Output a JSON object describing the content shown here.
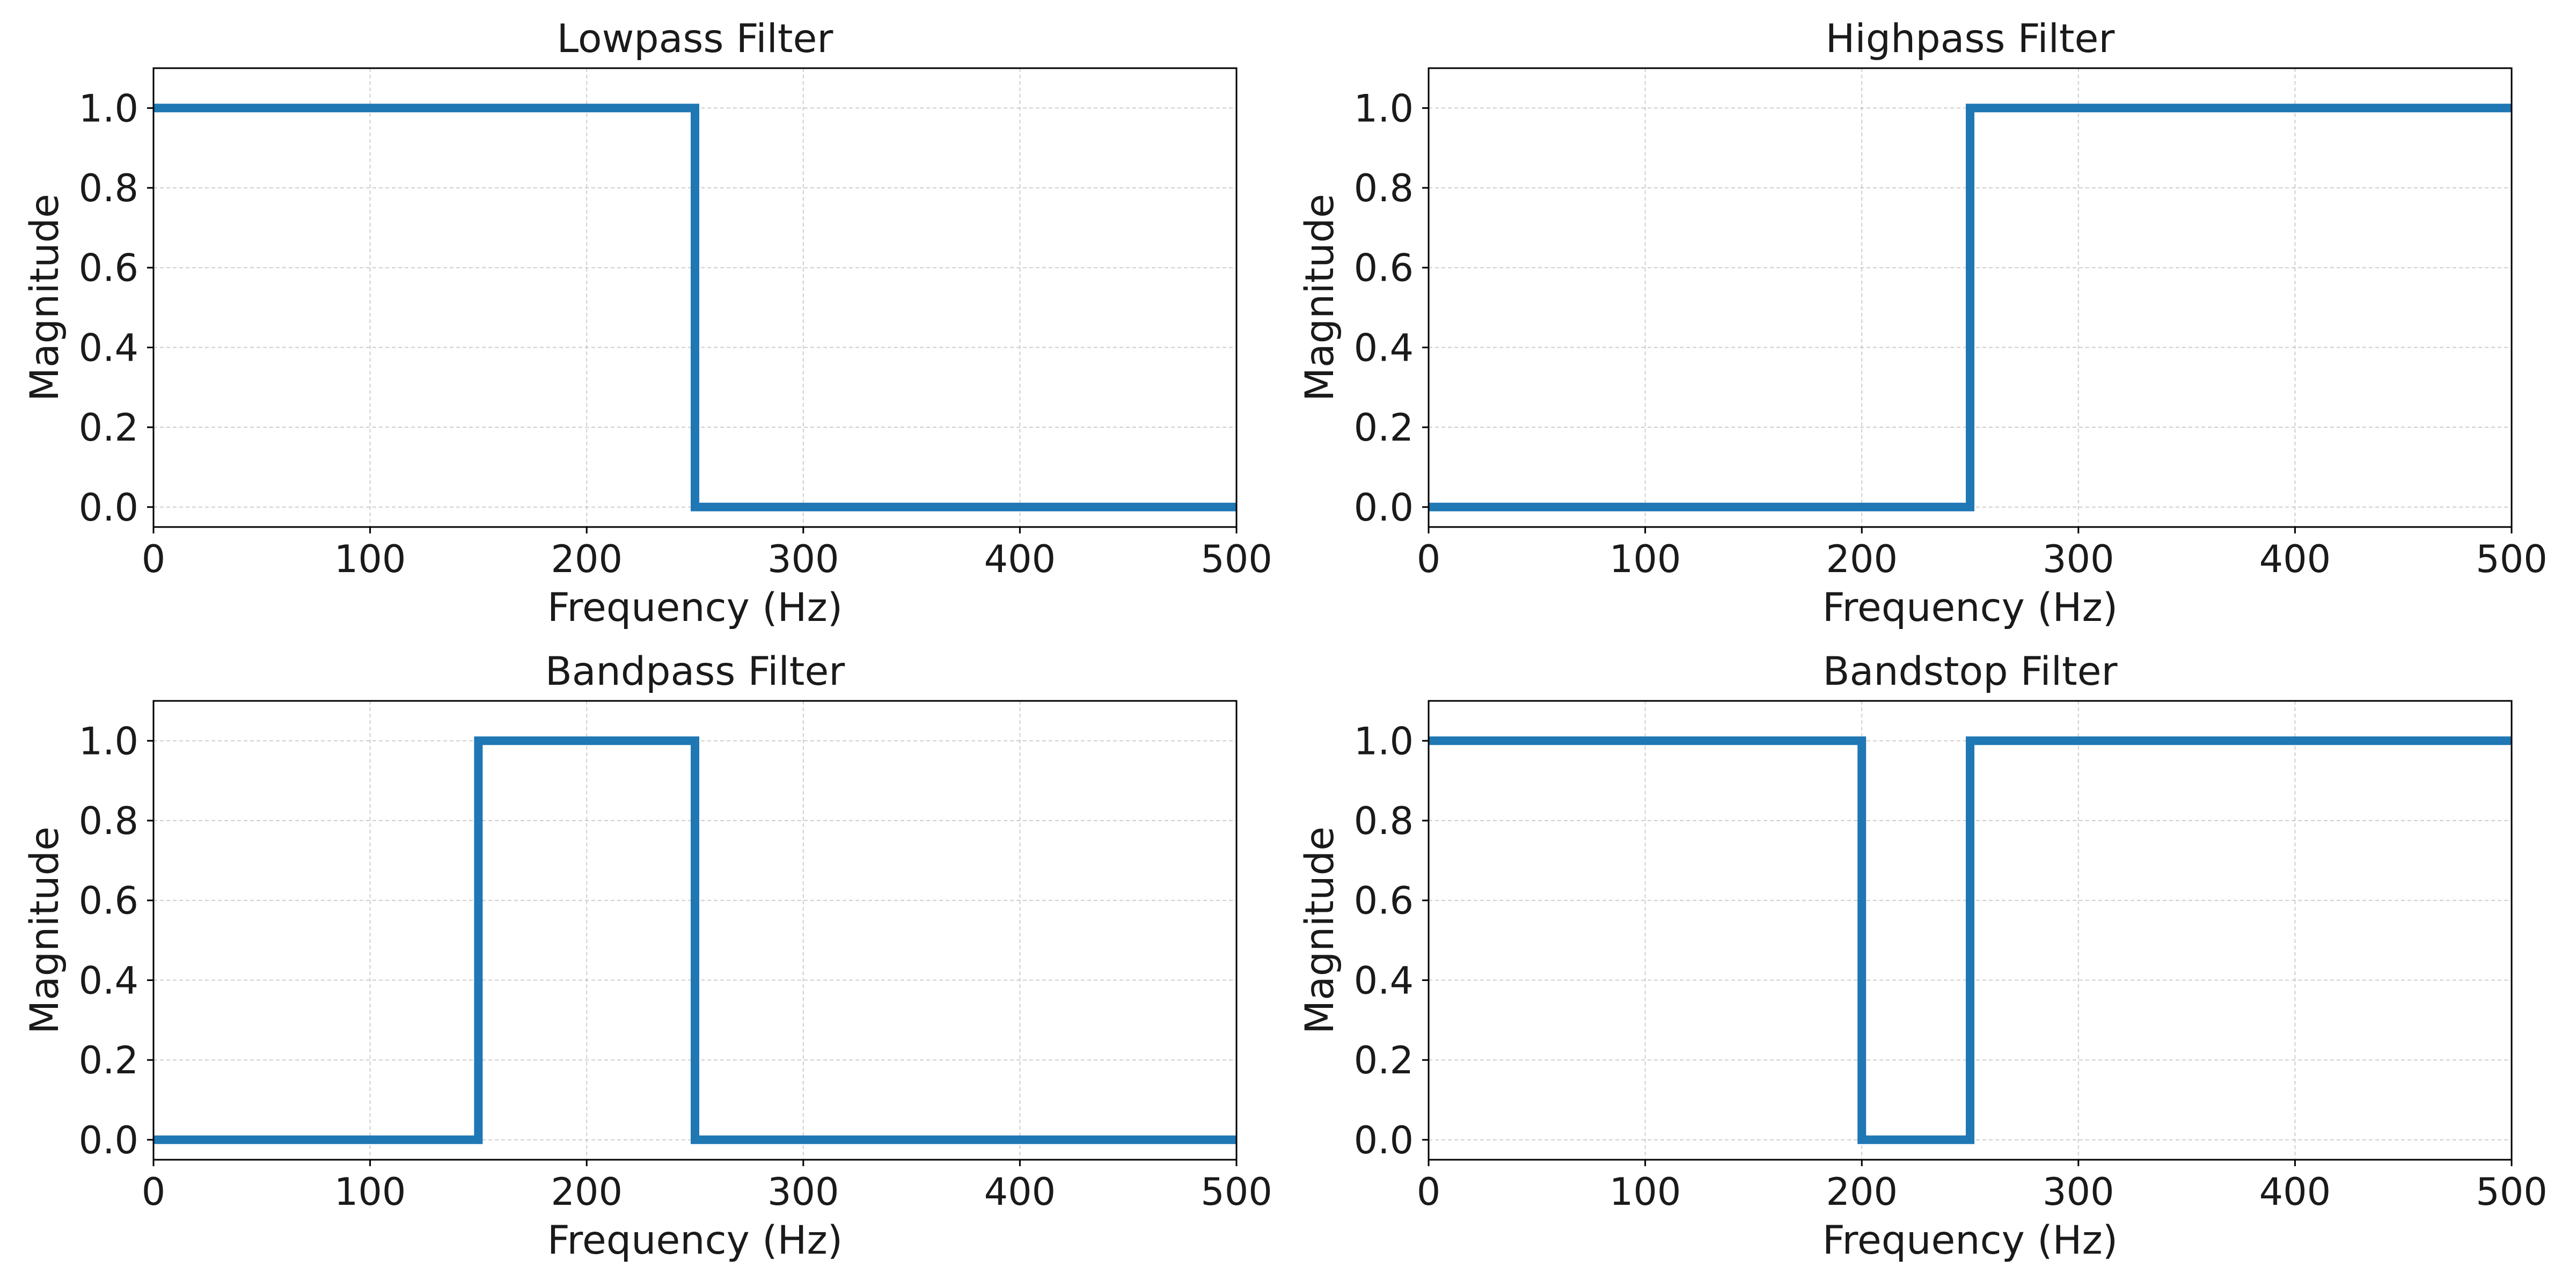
{
  "chart_data": [
    {
      "type": "line",
      "title": "Lowpass Filter",
      "xlabel": "Frequency (Hz)",
      "ylabel": "Magnitude",
      "xlim": [
        0,
        500
      ],
      "ylim": [
        -0.05,
        1.1
      ],
      "xticks": [
        0,
        100,
        200,
        300,
        400,
        500
      ],
      "yticks": [
        0.0,
        0.2,
        0.4,
        0.6,
        0.8,
        1.0
      ],
      "grid": true,
      "series": [
        {
          "color": "#1f77b4",
          "x": [
            0,
            250,
            250,
            500
          ],
          "y": [
            1,
            1,
            0,
            0
          ]
        }
      ]
    },
    {
      "type": "line",
      "title": "Highpass Filter",
      "xlabel": "Frequency (Hz)",
      "ylabel": "Magnitude",
      "xlim": [
        0,
        500
      ],
      "ylim": [
        -0.05,
        1.1
      ],
      "xticks": [
        0,
        100,
        200,
        300,
        400,
        500
      ],
      "yticks": [
        0.0,
        0.2,
        0.4,
        0.6,
        0.8,
        1.0
      ],
      "grid": true,
      "series": [
        {
          "color": "#1f77b4",
          "x": [
            0,
            250,
            250,
            500
          ],
          "y": [
            0,
            0,
            1,
            1
          ]
        }
      ]
    },
    {
      "type": "line",
      "title": "Bandpass Filter",
      "xlabel": "Frequency (Hz)",
      "ylabel": "Magnitude",
      "xlim": [
        0,
        500
      ],
      "ylim": [
        -0.05,
        1.1
      ],
      "xticks": [
        0,
        100,
        200,
        300,
        400,
        500
      ],
      "yticks": [
        0.0,
        0.2,
        0.4,
        0.6,
        0.8,
        1.0
      ],
      "grid": true,
      "series": [
        {
          "color": "#1f77b4",
          "x": [
            0,
            150,
            150,
            250,
            250,
            500
          ],
          "y": [
            0,
            0,
            1,
            1,
            0,
            0
          ]
        }
      ]
    },
    {
      "type": "line",
      "title": "Bandstop Filter",
      "xlabel": "Frequency (Hz)",
      "ylabel": "Magnitude",
      "xlim": [
        0,
        500
      ],
      "ylim": [
        -0.05,
        1.1
      ],
      "xticks": [
        0,
        100,
        200,
        300,
        400,
        500
      ],
      "yticks": [
        0.0,
        0.2,
        0.4,
        0.6,
        0.8,
        1.0
      ],
      "grid": true,
      "series": [
        {
          "color": "#1f77b4",
          "x": [
            0,
            200,
            200,
            250,
            250,
            500
          ],
          "y": [
            1,
            1,
            0,
            0,
            1,
            1
          ]
        }
      ]
    }
  ]
}
